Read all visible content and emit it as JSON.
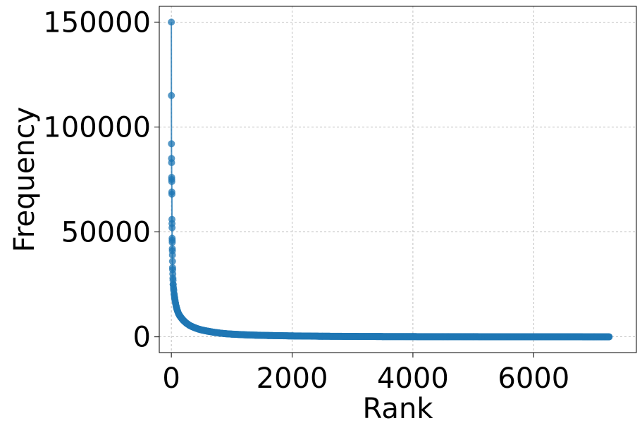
{
  "chart_data": {
    "type": "line",
    "title": "",
    "xlabel": "Rank",
    "ylabel": "Frequency",
    "xlim": [
      -200,
      7700
    ],
    "ylim": [
      -7500,
      157500
    ],
    "xticks": [
      0,
      2000,
      4000,
      6000
    ],
    "yticks": [
      0,
      50000,
      100000,
      150000
    ],
    "xtick_labels": [
      "0",
      "2000",
      "4000",
      "6000"
    ],
    "ytick_labels": [
      "0",
      "50000",
      "100000",
      "150000"
    ],
    "grid": true,
    "markers": true,
    "series_color": "#1f77b4",
    "series": [
      {
        "x": [
          0,
          1,
          2,
          3,
          4,
          5,
          6,
          7,
          8,
          9,
          10,
          11,
          12,
          13,
          14,
          15,
          16,
          17,
          18,
          19,
          20,
          22,
          24,
          26,
          28,
          30,
          35,
          40,
          45,
          50,
          55,
          60,
          70,
          80,
          90,
          100,
          120,
          140,
          160,
          180,
          200,
          250,
          300,
          350,
          400,
          450,
          500,
          600,
          700,
          800,
          900,
          1000,
          1200,
          1400,
          1600,
          1800,
          2000,
          2500,
          3000,
          3500,
          4000,
          4500,
          5000,
          5500,
          6000,
          6500,
          7000,
          7250
        ],
        "y": [
          150000,
          115000,
          92000,
          85000,
          83000,
          76000,
          75000,
          74000,
          69000,
          68000,
          56000,
          54000,
          52000,
          47000,
          46000,
          45000,
          42000,
          41000,
          39000,
          36000,
          33000,
          32000,
          30000,
          28000,
          27000,
          25000,
          23500,
          22000,
          20500,
          19500,
          18500,
          17500,
          16000,
          14500,
          13500,
          12500,
          11000,
          10000,
          9200,
          8500,
          7800,
          6500,
          5500,
          4800,
          4200,
          3700,
          3300,
          2700,
          2200,
          1800,
          1500,
          1300,
          1000,
          800,
          650,
          550,
          450,
          300,
          200,
          150,
          110,
          90,
          70,
          55,
          40,
          30,
          20,
          15
        ]
      }
    ]
  }
}
